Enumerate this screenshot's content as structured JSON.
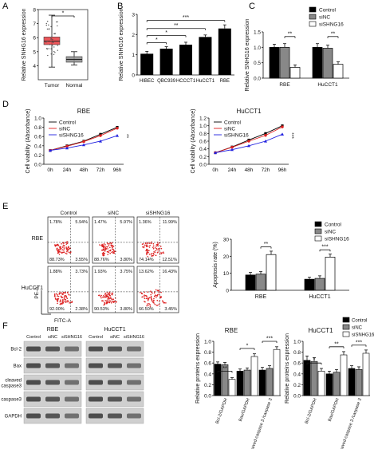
{
  "panel_labels": {
    "A": "A",
    "B": "B",
    "C": "C",
    "D": "D",
    "E": "E",
    "F": "F"
  },
  "chart_data": [
    {
      "id": "A",
      "type": "box",
      "ylabel": "Relative SNHG16 expression",
      "categories": [
        "Tumor",
        "Normal"
      ],
      "ylim": [
        3,
        8
      ],
      "yticks": [
        4,
        5,
        6,
        7,
        8
      ],
      "boxes": [
        {
          "q1": 5.5,
          "median": 5.75,
          "q3": 6.05,
          "whisker_low": 3.9,
          "whisker_high": 7.6,
          "color": "#e8383d"
        },
        {
          "q1": 4.25,
          "median": 4.45,
          "q3": 4.65,
          "whisker_low": 4.05,
          "whisker_high": 5.0,
          "color": "#888888"
        }
      ],
      "annotations": [
        "*"
      ]
    },
    {
      "id": "B",
      "type": "bar",
      "ylabel": "Relative SNHG16 expression",
      "categories": [
        "HIBEC",
        "QBC939",
        "HCCCT1",
        "HuCCT1",
        "RBE"
      ],
      "values": [
        1.05,
        1.3,
        1.5,
        1.88,
        2.3
      ],
      "errors": [
        0.12,
        0.1,
        0.12,
        0.1,
        0.18
      ],
      "ylim": [
        0,
        3
      ],
      "yticks": [
        0,
        1,
        2,
        3
      ],
      "annotations": [
        "*",
        "*",
        "**",
        "***"
      ]
    },
    {
      "id": "C",
      "type": "bar",
      "ylabel": "Relative SNHG16 expression",
      "categories": [
        "RBE",
        "HuCCT1"
      ],
      "series": [
        {
          "name": "Control",
          "values": [
            1.0,
            1.0
          ],
          "errors": [
            0.1,
            0.12
          ]
        },
        {
          "name": "siNC",
          "values": [
            1.0,
            0.97
          ],
          "errors": [
            0.12,
            0.1
          ]
        },
        {
          "name": "siSHNG16",
          "values": [
            0.35,
            0.45
          ],
          "errors": [
            0.08,
            0.08
          ]
        }
      ],
      "ylim": [
        0,
        1.5
      ],
      "yticks": [
        "0.0",
        "0.5",
        "1.0",
        "1.5"
      ],
      "annotations": [
        "**",
        "**"
      ]
    },
    {
      "id": "D1",
      "type": "line",
      "title": "RBE",
      "ylabel": "Cell viability (Absorbance)",
      "x": [
        "0h",
        "24h",
        "48h",
        "72h",
        "96h"
      ],
      "series": [
        {
          "name": "Control",
          "values": [
            0.3,
            0.4,
            0.5,
            0.65,
            0.8
          ]
        },
        {
          "name": "siNC",
          "values": [
            0.3,
            0.39,
            0.49,
            0.62,
            0.78
          ]
        },
        {
          "name": "siSHNG16",
          "values": [
            0.3,
            0.35,
            0.42,
            0.5,
            0.62
          ]
        }
      ],
      "ylim": [
        0,
        1.0
      ],
      "yticks": [
        "0.0",
        "0.2",
        "0.4",
        "0.6",
        "0.8",
        "1.0"
      ],
      "annotations": [
        "**"
      ]
    },
    {
      "id": "D2",
      "type": "line",
      "title": "HuCCT1",
      "ylabel": "Cell viability (Absorbance)",
      "x": [
        "0h",
        "24h",
        "48h",
        "72h",
        "96h"
      ],
      "series": [
        {
          "name": "Control",
          "values": [
            0.3,
            0.45,
            0.63,
            0.8,
            1.0
          ]
        },
        {
          "name": "siNC",
          "values": [
            0.3,
            0.44,
            0.6,
            0.75,
            0.97
          ]
        },
        {
          "name": "siSHNG16",
          "values": [
            0.3,
            0.38,
            0.48,
            0.6,
            0.78
          ]
        }
      ],
      "ylim": [
        0,
        1.2
      ],
      "yticks": [
        "0.0",
        "0.2",
        "0.4",
        "0.6",
        "0.8",
        "1.0",
        "1.2"
      ],
      "annotations": [
        "***"
      ]
    },
    {
      "id": "E",
      "type": "bar",
      "ylabel": "Apoptosis rate (%)",
      "categories": [
        "RBE",
        "HuCCT1"
      ],
      "series": [
        {
          "name": "Control",
          "values": [
            9,
            6.5
          ],
          "errors": [
            1.5,
            1.2
          ]
        },
        {
          "name": "siNC",
          "values": [
            9.5,
            7
          ],
          "errors": [
            1.5,
            1.5
          ]
        },
        {
          "name": "siSHNG16",
          "values": [
            21,
            19.5
          ],
          "errors": [
            2.0,
            1.8
          ]
        }
      ],
      "ylim": [
        0,
        30
      ],
      "yticks": [
        0,
        10,
        20,
        30
      ],
      "annotations": [
        "**",
        "***"
      ]
    },
    {
      "id": "F1",
      "type": "bar",
      "title": "RBE",
      "ylabel": "Relative proteins expression",
      "categories": [
        "Bcl-2/GAPDH",
        "Bax/GAPDH",
        "cleaved-caspase 3 /caspase 3"
      ],
      "series": [
        {
          "name": "Control",
          "values": [
            0.58,
            0.45,
            0.47
          ],
          "errors": [
            0.04,
            0.04,
            0.05
          ]
        },
        {
          "name": "siNC",
          "values": [
            0.57,
            0.47,
            0.5
          ],
          "errors": [
            0.04,
            0.04,
            0.05
          ]
        },
        {
          "name": "siSNHG16",
          "values": [
            0.3,
            0.72,
            0.85
          ],
          "errors": [
            0.03,
            0.05,
            0.05
          ]
        }
      ],
      "ylim": [
        0,
        1.0
      ],
      "yticks": [
        "0.0",
        "0.2",
        "0.4",
        "0.6",
        "0.8",
        "1.0"
      ],
      "annotations": [
        "**",
        "*",
        "***"
      ]
    },
    {
      "id": "F2",
      "type": "bar",
      "title": "HuCCT1",
      "ylabel": "Relative proteins expression",
      "categories": [
        "Bcl-2/GAPDH",
        "Bax/GAPDH",
        "cleaved-caspase 3 /caspase 3"
      ],
      "series": [
        {
          "name": "Control",
          "values": [
            0.65,
            0.4,
            0.5
          ],
          "errors": [
            0.08,
            0.05,
            0.05
          ]
        },
        {
          "name": "siNC",
          "values": [
            0.63,
            0.43,
            0.48
          ],
          "errors": [
            0.07,
            0.05,
            0.05
          ]
        },
        {
          "name": "siSNHG16",
          "values": [
            0.45,
            0.75,
            0.78
          ],
          "errors": [
            0.05,
            0.06,
            0.06
          ]
        }
      ],
      "ylim": [
        0,
        1.0
      ],
      "yticks": [
        "0.0",
        "0.2",
        "0.4",
        "0.6",
        "0.8",
        "1.0"
      ],
      "annotations": [
        "*",
        "**",
        "***"
      ]
    }
  ],
  "legend_bcd": [
    "Control",
    "siNC",
    "siSHNG16"
  ],
  "legend_f": [
    "Control",
    "siNC",
    "siSNHG16"
  ],
  "flow": {
    "columns": [
      "Control",
      "siNC",
      "siSHNG16"
    ],
    "rows": [
      "RBE",
      "HuCCT1"
    ],
    "quadrants": [
      [
        [
          "1.78%",
          "5.94%",
          "88.73%",
          "3.55%"
        ],
        [
          "1.47%",
          "5.97%",
          "88.76%",
          "3.80%"
        ],
        [
          "1.36%",
          "11.99%",
          "74.14%",
          "12.51%"
        ]
      ],
      [
        [
          "1.88%",
          "3.73%",
          "92.00%",
          "2.38%"
        ],
        [
          "1.93%",
          "3.75%",
          "90.53%",
          "3.80%"
        ],
        [
          "13.62%",
          "16.43%",
          "66.50%",
          "3.45%"
        ]
      ]
    ],
    "ylabel": "PE-A",
    "xlabel": "FITC-A"
  },
  "blot": {
    "groups": [
      "RBE",
      "HuCCT1"
    ],
    "lanes": [
      "Control",
      "siNC",
      "siSHNG16"
    ],
    "proteins": [
      "Bcl-2",
      "Bax",
      "cleaved caspase3",
      "caspase3",
      "GAPDH"
    ]
  },
  "colors": {
    "control": "#000000",
    "sinc": "#888888",
    "sishng16": "#ffffff",
    "red": "#e02020",
    "blue": "#2020e0"
  }
}
